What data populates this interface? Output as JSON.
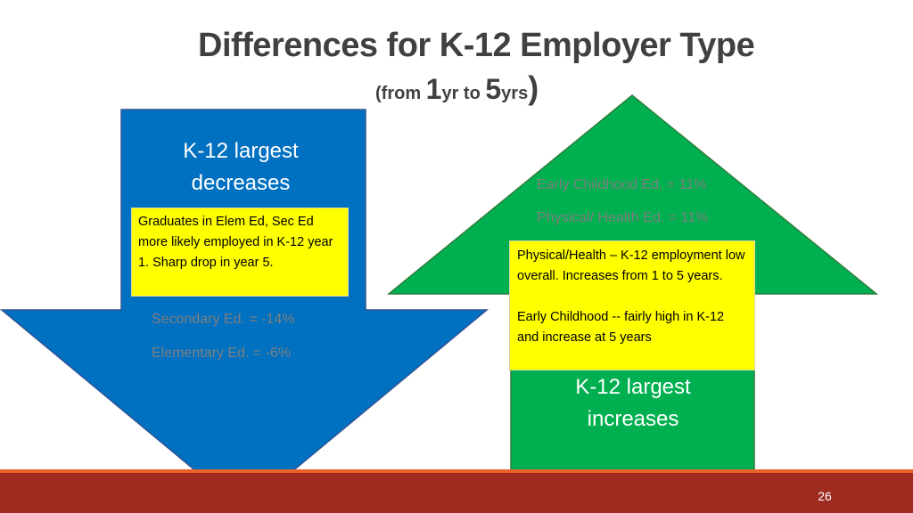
{
  "title": "Differences for K-12 Employer Type",
  "subtitle": {
    "from": "(from ",
    "num1": "1",
    "unit1": "yr to ",
    "num2": "5",
    "unit2": "yrs",
    "close": ")"
  },
  "down_arrow": {
    "heading_line1": "K-12 largest",
    "heading_line2": "decreases",
    "note": "Graduates in Elem Ed, Sec Ed more likely employed in K-12 year 1. Sharp drop in year 5.",
    "stats": [
      "Secondary Ed. = -14%",
      "Elementary Ed. = -6%"
    ],
    "color": "#0070c0"
  },
  "up_arrow": {
    "heading_line1": "K-12 largest",
    "heading_line2": "increases",
    "stats": [
      "Early Childhood Ed. = 11%",
      "Physical/ Health Ed. = 11%"
    ],
    "note_line1": "Physical/Health – K-12 employment low overall. Increases from 1 to 5 years.",
    "note_line2": "Early Childhood --  fairly high in K-12 and increase at 5 years",
    "color": "#00b050"
  },
  "note_color": "#ffff00",
  "page_number": "26"
}
